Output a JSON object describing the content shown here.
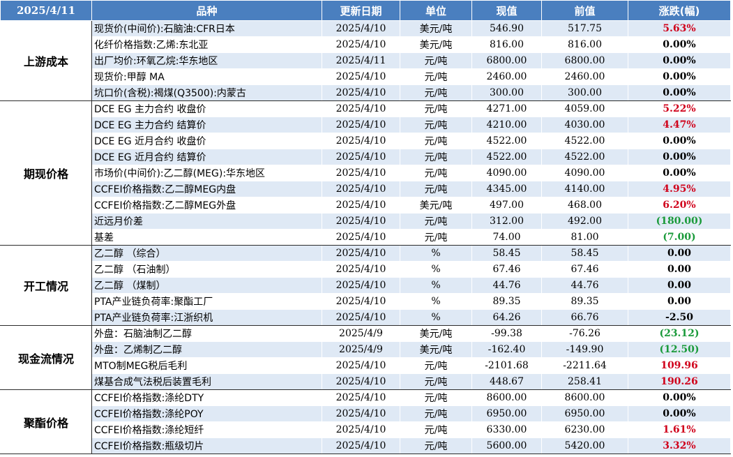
{
  "header": {
    "date": "2025/4/11",
    "columns": [
      "品种",
      "更新日期",
      "单位",
      "现值",
      "前值",
      "涨跌(幅)"
    ]
  },
  "groups": [
    {
      "name": "上游成本",
      "rows": [
        {
          "item": "现货价(中间价):石脑油:CFR日本",
          "date": "2025/4/10",
          "unit": "美元/吨",
          "current": "546.90",
          "previous": "517.75",
          "change": "5.63%",
          "dir": "up"
        },
        {
          "item": "化纤价格指数:乙烯:东北亚",
          "date": "2025/4/10",
          "unit": "美元/吨",
          "current": "816.00",
          "previous": "816.00",
          "change": "0.00%",
          "dir": "flat"
        },
        {
          "item": "出厂均价:环氧乙烷:华东地区",
          "date": "2025/4/11",
          "unit": "元/吨",
          "current": "6800.00",
          "previous": "6800.00",
          "change": "0.00%",
          "dir": "flat"
        },
        {
          "item": "现货价:甲醇 MA",
          "date": "2025/4/10",
          "unit": "元/吨",
          "current": "2460.00",
          "previous": "2460.00",
          "change": "0.00%",
          "dir": "flat"
        },
        {
          "item": "坑口价(含税):褐煤(Q3500):内蒙古",
          "date": "2025/4/10",
          "unit": "元/吨",
          "current": "300.00",
          "previous": "300.00",
          "change": "0.00%",
          "dir": "flat"
        }
      ]
    },
    {
      "name": "期现价格",
      "rows": [
        {
          "item": "DCE EG 主力合约 收盘价",
          "date": "2025/4/10",
          "unit": "元/吨",
          "current": "4271.00",
          "previous": "4059.00",
          "change": "5.22%",
          "dir": "up"
        },
        {
          "item": "DCE EG 主力合约 结算价",
          "date": "2025/4/10",
          "unit": "元/吨",
          "current": "4210.00",
          "previous": "4030.00",
          "change": "4.47%",
          "dir": "up"
        },
        {
          "item": "DCE EG 近月合约 收盘价",
          "date": "2025/4/10",
          "unit": "元/吨",
          "current": "4522.00",
          "previous": "4522.00",
          "change": "0.00%",
          "dir": "flat"
        },
        {
          "item": "DCE EG 近月合约 结算价",
          "date": "2025/4/10",
          "unit": "元/吨",
          "current": "4522.00",
          "previous": "4522.00",
          "change": "0.00%",
          "dir": "flat"
        },
        {
          "item": "市场价(中间价):乙二醇(MEG):华东地区",
          "date": "2025/4/10",
          "unit": "元/吨",
          "current": "4090.00",
          "previous": "4090.00",
          "change": "0.00%",
          "dir": "flat"
        },
        {
          "item": "CCFEI价格指数:乙二醇MEG内盘",
          "date": "2025/4/10",
          "unit": "元/吨",
          "current": "4345.00",
          "previous": "4140.00",
          "change": "4.95%",
          "dir": "up"
        },
        {
          "item": "CCFEI价格指数:乙二醇MEG外盘",
          "date": "2025/4/10",
          "unit": "美元/吨",
          "current": "497.00",
          "previous": "468.00",
          "change": "6.20%",
          "dir": "up"
        },
        {
          "item": "近远月价差",
          "date": "2025/4/10",
          "unit": "元/吨",
          "current": "312.00",
          "previous": "492.00",
          "change": "(180.00)",
          "dir": "down"
        },
        {
          "item": "基差",
          "date": "2025/4/10",
          "unit": "元/吨",
          "current": "74.00",
          "previous": "81.00",
          "change": "(7.00)",
          "dir": "down"
        }
      ]
    },
    {
      "name": "开工情况",
      "rows": [
        {
          "item": "乙二醇 （综合）",
          "date": "2025/4/10",
          "unit": "%",
          "current": "58.45",
          "previous": "58.45",
          "change": "0.00",
          "dir": "flat"
        },
        {
          "item": "乙二醇 （石油制）",
          "date": "2025/4/10",
          "unit": "%",
          "current": "67.46",
          "previous": "67.46",
          "change": "0.00",
          "dir": "flat"
        },
        {
          "item": "乙二醇 （煤制）",
          "date": "2025/4/10",
          "unit": "%",
          "current": "44.76",
          "previous": "44.76",
          "change": "0.00",
          "dir": "flat"
        },
        {
          "item": "PTA产业链负荷率:聚酯工厂",
          "date": "2025/4/10",
          "unit": "%",
          "current": "89.35",
          "previous": "89.35",
          "change": "0.00",
          "dir": "flat"
        },
        {
          "item": "PTA产业链负荷率:江浙织机",
          "date": "2025/4/10",
          "unit": "%",
          "current": "64.26",
          "previous": "66.76",
          "change": "-2.50",
          "dir": "flat"
        }
      ]
    },
    {
      "name": "现金流情况",
      "rows": [
        {
          "item": "外盘：石脑油制乙二醇",
          "date": "2025/4/9",
          "unit": "美元/吨",
          "current": "-99.38",
          "previous": "-76.26",
          "change": "(23.12)",
          "dir": "down"
        },
        {
          "item": "外盘：乙烯制乙二醇",
          "date": "2025/4/9",
          "unit": "美元/吨",
          "current": "-162.40",
          "previous": "-149.90",
          "change": "(12.50)",
          "dir": "down"
        },
        {
          "item": "MTO制MEG税后毛利",
          "date": "2025/4/10",
          "unit": "元/吨",
          "current": "-2101.68",
          "previous": "-2211.64",
          "change": "109.96",
          "dir": "up"
        },
        {
          "item": "煤基合成气法税后装置毛利",
          "date": "2025/4/10",
          "unit": "元/吨",
          "current": "448.67",
          "previous": "258.41",
          "change": "190.26",
          "dir": "up"
        }
      ]
    },
    {
      "name": "聚酯价格",
      "rows": [
        {
          "item": "CCFEI价格指数:涤纶DTY",
          "date": "2025/4/10",
          "unit": "元/吨",
          "current": "8600.00",
          "previous": "8600.00",
          "change": "0.00%",
          "dir": "flat"
        },
        {
          "item": "CCFEI价格指数:涤纶POY",
          "date": "2025/4/10",
          "unit": "元/吨",
          "current": "6950.00",
          "previous": "6950.00",
          "change": "0.00%",
          "dir": "flat"
        },
        {
          "item": "CCFEI价格指数:涤纶短纤",
          "date": "2025/4/10",
          "unit": "元/吨",
          "current": "6330.00",
          "previous": "6230.00",
          "change": "1.61%",
          "dir": "up"
        },
        {
          "item": "CCFEI价格指数:瓶级切片",
          "date": "2025/4/10",
          "unit": "元/吨",
          "current": "5600.00",
          "previous": "5420.00",
          "change": "3.32%",
          "dir": "up"
        }
      ]
    }
  ],
  "colors": {
    "header_bg": "#4a7fbf",
    "band_bg": "#dfe9f5",
    "up": "#d0021b",
    "down": "#1a9a3a",
    "flat": "#000000"
  }
}
